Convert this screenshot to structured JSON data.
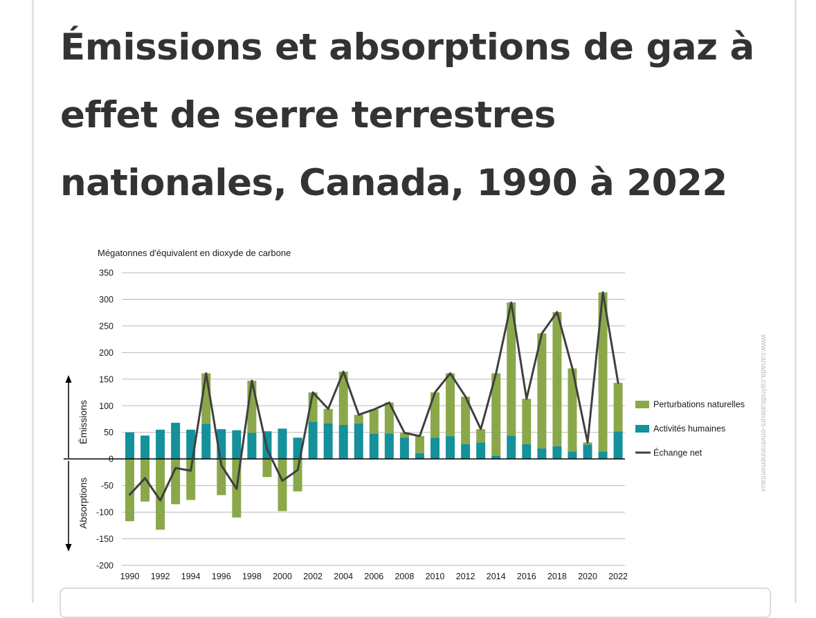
{
  "page": {
    "title": "Émissions et absorptions de gaz à effet de serre terrestres nationales, Canada, 1990 à 2022"
  },
  "colors": {
    "natural": "#8aa84a",
    "human": "#14919b",
    "net": "#3f3f3f",
    "grid": "#b8b8b8",
    "text": "#1a1a1a",
    "watermark": "#bdbdbd"
  },
  "chart_data": {
    "type": "bar",
    "title": "",
    "ylabel": "Mégatonnes d'équivalent en dioxyde de carbone",
    "side_label_top": "Émissions",
    "side_label_bottom": "Absorptions",
    "watermark": "www.canada.ca/indicateurs-environnementaux",
    "ylim": [
      -200,
      350
    ],
    "yticks": [
      -200,
      -150,
      -100,
      -50,
      0,
      50,
      100,
      150,
      200,
      250,
      300,
      350
    ],
    "x": [
      1990,
      1991,
      1992,
      1993,
      1994,
      1995,
      1996,
      1997,
      1998,
      1999,
      2000,
      2001,
      2002,
      2003,
      2004,
      2005,
      2006,
      2007,
      2008,
      2009,
      2010,
      2011,
      2012,
      2013,
      2014,
      2015,
      2016,
      2017,
      2018,
      2019,
      2020,
      2021,
      2022
    ],
    "xticks": [
      1990,
      1992,
      1994,
      1996,
      1998,
      2000,
      2002,
      2004,
      2006,
      2008,
      2010,
      2012,
      2014,
      2016,
      2018,
      2020,
      2022
    ],
    "stacked": true,
    "legend_position": "right",
    "grid": true,
    "series": [
      {
        "name": "Perturbations naturelles",
        "kind": "bar",
        "color": "#8aa84a",
        "values": [
          -117,
          -80,
          -133,
          -85,
          -77,
          95,
          -68,
          -110,
          98,
          -34,
          -98,
          -61,
          55,
          27,
          100,
          16,
          45,
          58,
          9,
          32,
          85,
          118,
          89,
          25,
          155,
          250,
          85,
          216,
          252,
          156,
          4,
          299,
          91
        ]
      },
      {
        "name": "Activités humaines",
        "kind": "bar",
        "color": "#14919b",
        "values": [
          50,
          44,
          55,
          68,
          55,
          66,
          56,
          54,
          49,
          52,
          57,
          40,
          70,
          67,
          64,
          67,
          48,
          48,
          40,
          11,
          40,
          43,
          28,
          31,
          6,
          44,
          28,
          20,
          24,
          14,
          27,
          14,
          52
        ]
      },
      {
        "name": "Échange net",
        "kind": "line",
        "color": "#3f3f3f",
        "values": [
          -67,
          -36,
          -78,
          -17,
          -22,
          161,
          -12,
          -56,
          147,
          18,
          -41,
          -21,
          125,
          94,
          164,
          83,
          93,
          106,
          49,
          43,
          125,
          161,
          117,
          56,
          161,
          294,
          113,
          236,
          276,
          170,
          31,
          313,
          143
        ]
      }
    ]
  }
}
